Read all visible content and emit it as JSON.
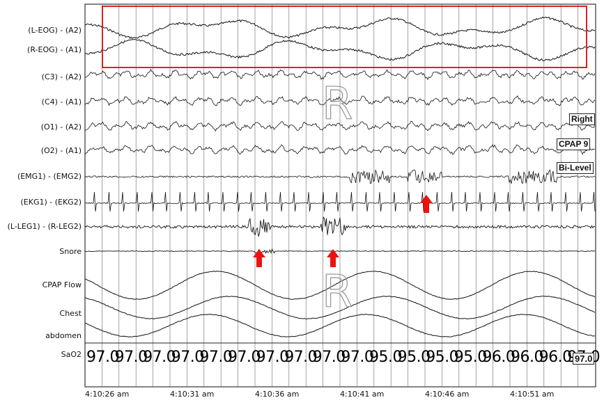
{
  "channels": [
    {
      "label": "(L-EOG) - (A2)"
    },
    {
      "label": "(R-EOG) - (A1)"
    },
    {
      "label": "(C3) - (A2)"
    },
    {
      "label": "(C4) - (A1)"
    },
    {
      "label": "(O1) - (A2)"
    },
    {
      "label": "(O2) - (A1)"
    },
    {
      "label": "(EMG1) - (EMG2)"
    },
    {
      "label": "(EKG1) - (EKG2)"
    },
    {
      "label": "(L-LEG1) - (R-LEG2)"
    },
    {
      "label": "Snore"
    },
    {
      "label": "CPAP Flow"
    },
    {
      "label": "Chest"
    },
    {
      "label": "abdomen"
    },
    {
      "label": "SaO2"
    }
  ],
  "time_axis": [
    "4:10:26 am",
    "4:10:31 am",
    "4:10:36 am",
    "4:10:41 am",
    "4:10:46 am",
    "4:10:51 am"
  ],
  "sao2_values": [
    "97.0",
    "97.0",
    "97.0",
    "97.0",
    "97.0",
    "97.0",
    "97.0",
    "97.0",
    "97.0",
    "97.0",
    "95.0",
    "95.0",
    "95.0",
    "95.0",
    "96.0",
    "96.0",
    "96.0",
    "97.0"
  ],
  "sao2_box": "97.0",
  "annotations": {
    "right": "Right",
    "cpap": "CPAP 9",
    "bilevel": "Bi-Level",
    "rem_marker": "R"
  },
  "colors": {
    "highlight_box": "#e02020",
    "arrow": "#ee1111",
    "trace": "#111111",
    "gridline": "#555555"
  }
}
